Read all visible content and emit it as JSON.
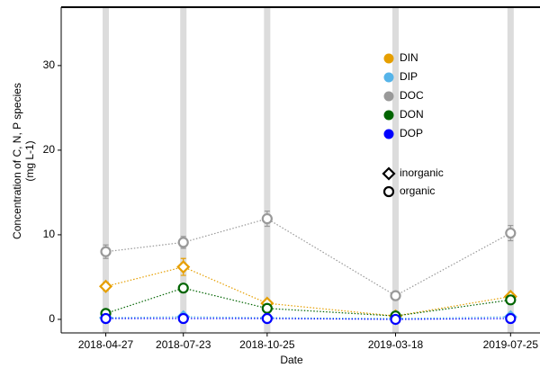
{
  "chart_data": {
    "type": "line",
    "y_label": [
      "Concentration of C, N, P species",
      "(mg L-1)"
    ],
    "x_label": "Date",
    "x": [
      "2018-04-27",
      "2018-07-23",
      "2018-10-25",
      "2019-03-18",
      "2019-07-25"
    ],
    "xlim": [
      "2018-03-08",
      "2019-08-27"
    ],
    "ylim": [
      -1.6,
      36.9
    ],
    "yticks": [
      0,
      10,
      20,
      30
    ],
    "legend_position": "upper right",
    "series": [
      {
        "name": "DIN",
        "color": "#e69f00",
        "shape": "diamond",
        "values": [
          3.9,
          6.2,
          1.9,
          0.4,
          2.7
        ],
        "errors": [
          0.5,
          1.0,
          0.3,
          0.2,
          0.4
        ]
      },
      {
        "name": "DIP",
        "color": "#56b4e9",
        "shape": "diamond",
        "values": [
          0.2,
          0.3,
          0.2,
          0.1,
          0.3
        ],
        "errors": [
          0.1,
          0.1,
          0.1,
          0.1,
          0.1
        ]
      },
      {
        "name": "DOC",
        "color": "#999999",
        "shape": "circle",
        "values": [
          8.0,
          9.1,
          11.9,
          2.8,
          10.2
        ],
        "errors": [
          0.8,
          0.7,
          0.9,
          0.3,
          0.9
        ]
      },
      {
        "name": "DON",
        "color": "#006400",
        "shape": "circle",
        "values": [
          0.7,
          3.7,
          1.3,
          0.4,
          2.3
        ],
        "errors": [
          0.3,
          0.4,
          0.3,
          0.1,
          0.3
        ]
      },
      {
        "name": "DOP",
        "color": "#0000ff",
        "shape": "circle",
        "values": [
          0.1,
          0.1,
          0.1,
          0.0,
          0.1
        ],
        "errors": [
          0.05,
          0.05,
          0.05,
          0.05,
          0.05
        ]
      }
    ],
    "shape_legend": [
      {
        "shape": "diamond",
        "label": "inorganic"
      },
      {
        "shape": "circle",
        "label": "organic"
      }
    ]
  }
}
